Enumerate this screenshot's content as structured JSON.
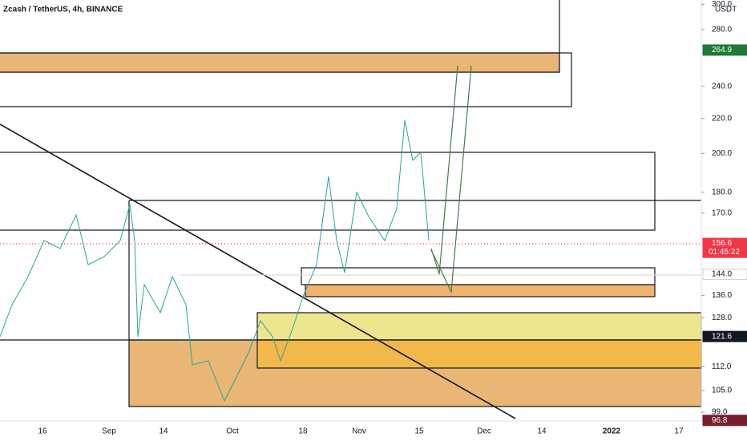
{
  "header": {
    "title": "Zcash / TetherUS, 4h, BINANCE"
  },
  "price_axis": {
    "unit": "USDT",
    "labels": [
      {
        "value": 300,
        "label": "300.0"
      },
      {
        "value": 280,
        "label": "280.0"
      },
      {
        "value": 240,
        "label": "240.0"
      },
      {
        "value": 220,
        "label": "220.0"
      },
      {
        "value": 200,
        "label": "200.0"
      },
      {
        "value": 180,
        "label": "180.0"
      },
      {
        "value": 170,
        "label": "170.0"
      },
      {
        "value": 136,
        "label": "136.0"
      },
      {
        "value": 128,
        "label": "128.0"
      },
      {
        "value": 112,
        "label": "112.0"
      },
      {
        "value": 105,
        "label": "105.0"
      },
      {
        "value": 99,
        "label": "99.0"
      }
    ],
    "tags": [
      {
        "value": 264.9,
        "label": "264.9",
        "color": "#1e7a34",
        "text": "#ffffff"
      },
      {
        "value": 156.6,
        "label": "156.6",
        "color": "#f23645",
        "text": "#ffffff",
        "sub": "01:45:22"
      },
      {
        "value": 144,
        "label": "144.0",
        "color": "#ffffff",
        "text": "#131722"
      },
      {
        "value": 121.6,
        "label": "121.6",
        "color": "#131722",
        "text": "#ffffff"
      },
      {
        "value": 96.8,
        "label": "96.8",
        "color": "#7a1d2a",
        "text": "#ffffff"
      }
    ]
  },
  "time_axis": {
    "labels": [
      "16",
      "Sep",
      "14",
      "Oct",
      "18",
      "Nov",
      "15",
      "Dec",
      "14",
      "2022",
      "17"
    ]
  }
}
